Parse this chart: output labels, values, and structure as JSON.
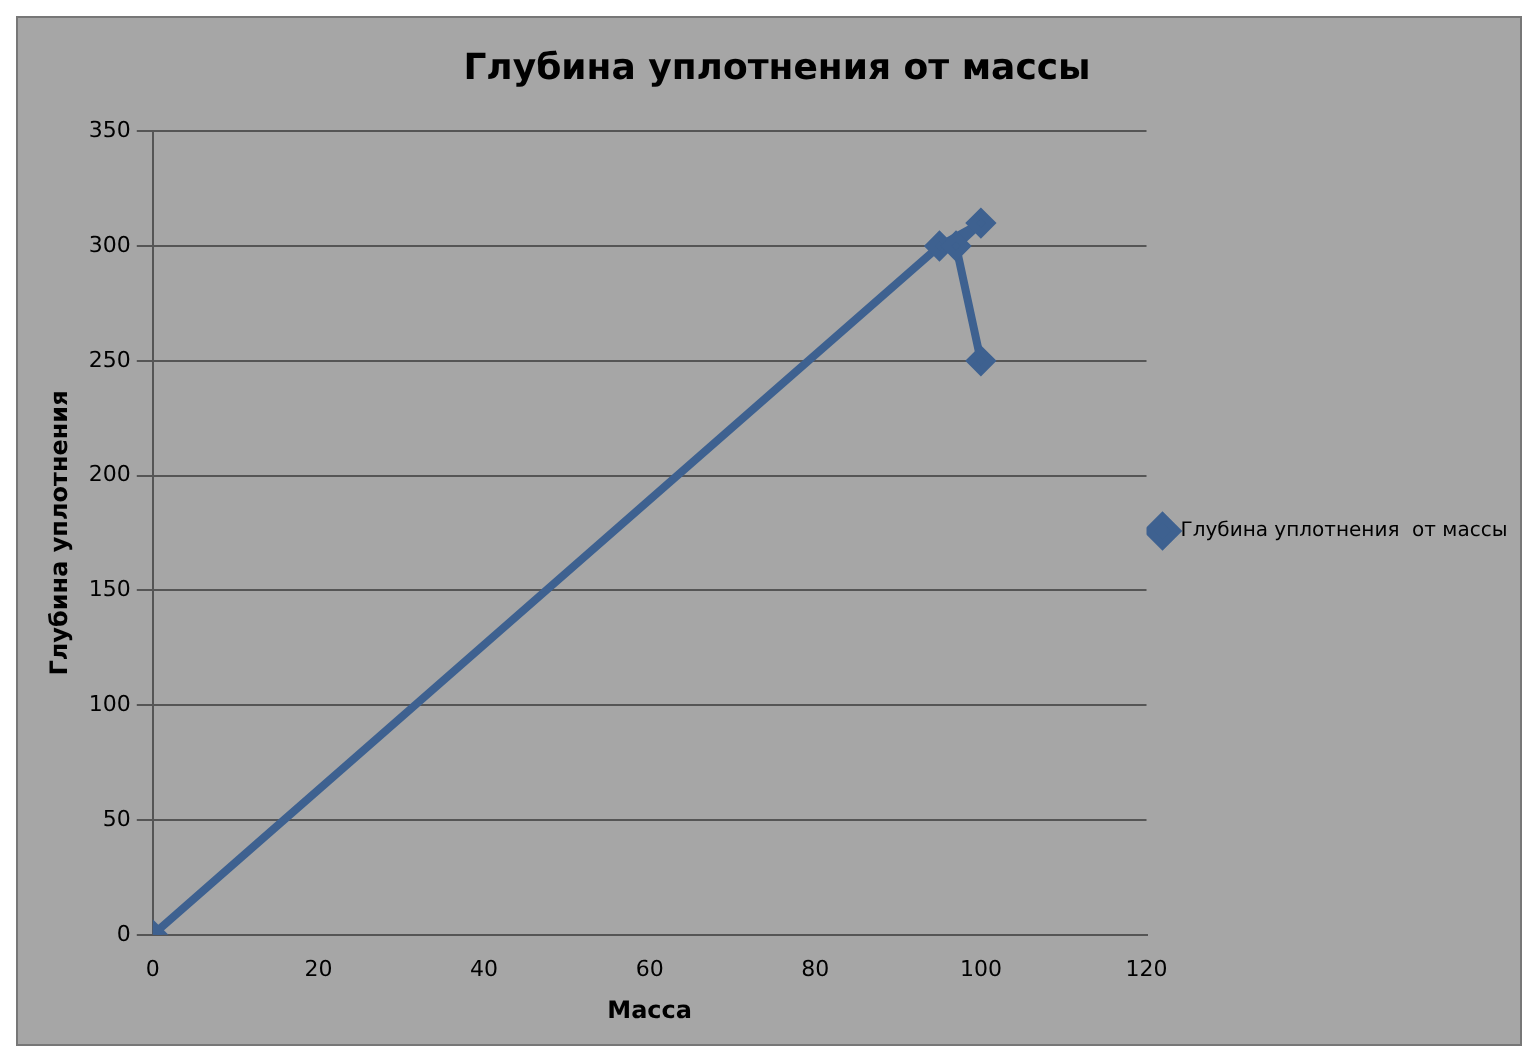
{
  "chart_data": {
    "type": "line",
    "title": "Глубина уплотнения от массы",
    "xlabel": "Масса",
    "ylabel": "Глубина уплотнения",
    "series": [
      {
        "name": "Глубина уплотнения  от массы",
        "color": "#3e6190",
        "x": [
          0,
          95,
          100,
          97,
          100
        ],
        "values": [
          0,
          300,
          310,
          300,
          250
        ]
      }
    ],
    "xlim": [
      0,
      120
    ],
    "xticks": [
      0,
      20,
      40,
      60,
      80,
      100,
      120
    ],
    "ylim": [
      0,
      350
    ],
    "yticks": [
      0,
      50,
      100,
      150,
      200,
      250,
      300,
      350
    ],
    "grid": "y",
    "legend": "right",
    "marker": "diamond",
    "line_style": "solid"
  }
}
